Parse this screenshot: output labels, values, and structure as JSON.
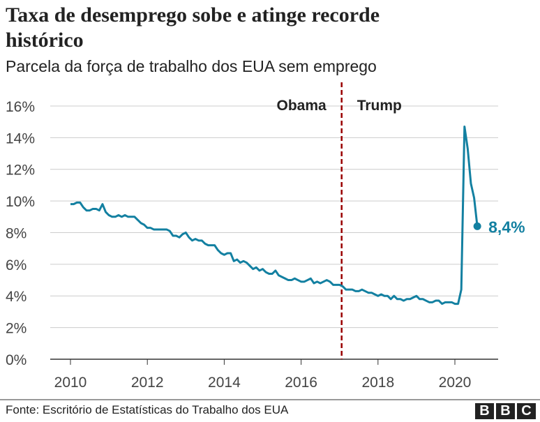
{
  "title": "Taxa de desemprego sobe e atinge recorde histórico",
  "subtitle": "Parcela da força de trabalho dos EUA sem emprego",
  "source": "Fonte: Escritório de Estatísticas do Trabalho dos EUA",
  "logo": "BBC",
  "colors": {
    "line": "#1380A1",
    "divider": "#990000",
    "grid": "#cccccc"
  },
  "chart_data": {
    "type": "line",
    "ylim": [
      0,
      16
    ],
    "yticks": [
      "0%",
      "2%",
      "4%",
      "6%",
      "8%",
      "10%",
      "12%",
      "14%",
      "16%"
    ],
    "xticks": [
      "2010",
      "2012",
      "2014",
      "2016",
      "2018",
      "2020"
    ],
    "grid": true,
    "annotations": {
      "left_label": "Obama",
      "right_label": "Trump",
      "divider_date": "2017-01",
      "end_label": "8,4%"
    },
    "start": "2010-01",
    "frequency": "monthly",
    "values": [
      9.8,
      9.8,
      9.9,
      9.9,
      9.6,
      9.4,
      9.4,
      9.5,
      9.5,
      9.4,
      9.8,
      9.3,
      9.1,
      9.0,
      9.0,
      9.1,
      9.0,
      9.1,
      9.0,
      9.0,
      9.0,
      8.8,
      8.6,
      8.5,
      8.3,
      8.3,
      8.2,
      8.2,
      8.2,
      8.2,
      8.2,
      8.1,
      7.8,
      7.8,
      7.7,
      7.9,
      8.0,
      7.7,
      7.5,
      7.6,
      7.5,
      7.5,
      7.3,
      7.2,
      7.2,
      7.2,
      6.9,
      6.7,
      6.6,
      6.7,
      6.7,
      6.2,
      6.3,
      6.1,
      6.2,
      6.1,
      5.9,
      5.7,
      5.8,
      5.6,
      5.7,
      5.5,
      5.4,
      5.4,
      5.6,
      5.3,
      5.2,
      5.1,
      5.0,
      5.0,
      5.1,
      5.0,
      4.9,
      4.9,
      5.0,
      5.1,
      4.8,
      4.9,
      4.8,
      4.9,
      5.0,
      4.9,
      4.7,
      4.7,
      4.7,
      4.6,
      4.4,
      4.4,
      4.4,
      4.3,
      4.3,
      4.4,
      4.3,
      4.2,
      4.2,
      4.1,
      4.0,
      4.1,
      4.0,
      4.0,
      3.8,
      4.0,
      3.8,
      3.8,
      3.7,
      3.8,
      3.8,
      3.9,
      4.0,
      3.8,
      3.8,
      3.7,
      3.6,
      3.6,
      3.7,
      3.7,
      3.5,
      3.6,
      3.6,
      3.6,
      3.5,
      3.5,
      4.4,
      14.7,
      13.3,
      11.1,
      10.2,
      8.4
    ]
  }
}
